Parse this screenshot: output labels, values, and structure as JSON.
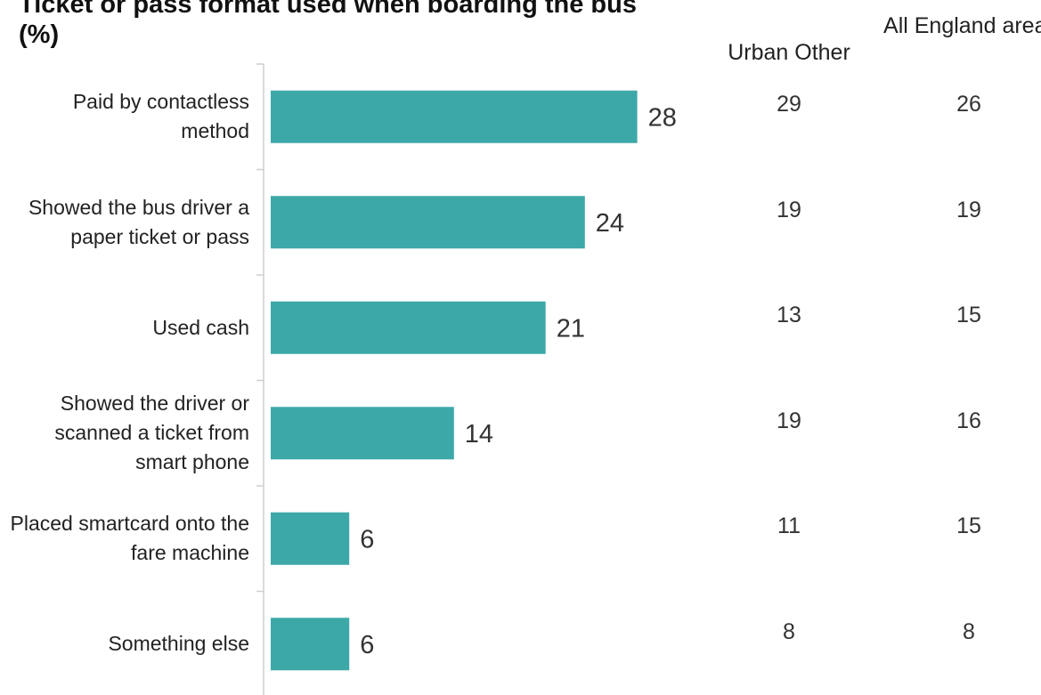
{
  "chart_data": {
    "type": "bar",
    "orientation": "horizontal",
    "title": "Ticket or pass format used when boarding the bus (%)",
    "categories": [
      "Paid by contactless method",
      "Showed the bus driver a paper ticket or pass",
      "Used cash",
      "Showed the driver or scanned a ticket from smart phone",
      "Placed smartcard onto the fare machine",
      "Something else"
    ],
    "values": [
      28,
      24,
      21,
      14,
      6,
      6
    ],
    "comparison_columns": [
      {
        "name": "Urban Other",
        "values": [
          29,
          19,
          13,
          19,
          11,
          8
        ]
      },
      {
        "name": "All England areas",
        "values": [
          26,
          19,
          15,
          16,
          15,
          8
        ]
      }
    ],
    "bar_color": "#3da8a8",
    "xlim": [
      0,
      40
    ],
    "grid": false,
    "legend": "none"
  }
}
